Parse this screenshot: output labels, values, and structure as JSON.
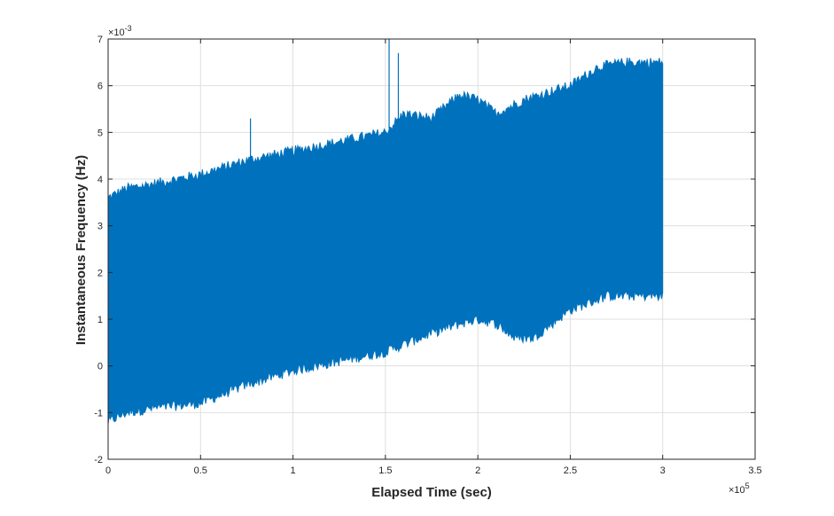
{
  "chart_data": {
    "type": "line",
    "title": "",
    "xlabel": "Elapsed Time (sec)",
    "ylabel": "Instantaneous Frequency (Hz)",
    "x_exponent_label": "×10",
    "x_exponent_power": "5",
    "y_exponent_label": "×10",
    "y_exponent_power": "-3",
    "xlim": [
      0,
      350000
    ],
    "ylim": [
      -0.002,
      0.007
    ],
    "x_ticks": [
      0,
      0.5,
      1,
      1.5,
      2,
      2.5,
      3,
      3.5
    ],
    "x_tick_labels": [
      "0",
      "0.5",
      "1",
      "1.5",
      "2",
      "2.5",
      "3",
      "3.5"
    ],
    "y_ticks": [
      -2,
      -1,
      0,
      1,
      2,
      3,
      4,
      5,
      6,
      7
    ],
    "y_tick_labels": [
      "-2",
      "-1",
      "0",
      "1",
      "2",
      "3",
      "4",
      "5",
      "6",
      "7"
    ],
    "grid": true,
    "series_color": "#0072BD",
    "upper_envelope": {
      "x": [
        0,
        10000,
        25000,
        50000,
        75000,
        100000,
        125000,
        150000,
        160000,
        175000,
        190000,
        200000,
        210000,
        225000,
        250000,
        265000,
        280000,
        300000
      ],
      "y": [
        0.0036,
        0.0038,
        0.0039,
        0.0041,
        0.0044,
        0.0046,
        0.0048,
        0.005,
        0.0054,
        0.0053,
        0.0058,
        0.0057,
        0.0054,
        0.0057,
        0.006,
        0.0064,
        0.0065,
        0.0065
      ]
    },
    "lower_envelope": {
      "x": [
        0,
        10000,
        25000,
        50000,
        75000,
        100000,
        125000,
        150000,
        175000,
        190000,
        200000,
        210000,
        220000,
        230000,
        250000,
        270000,
        300000
      ],
      "y": [
        -0.0012,
        -0.001,
        -0.0009,
        -0.0008,
        -0.0004,
        -0.0001,
        0.0001,
        0.0003,
        0.0007,
        0.0009,
        0.001,
        0.0009,
        0.0006,
        0.0006,
        0.0012,
        0.0015,
        0.0015
      ]
    },
    "spikes": [
      {
        "x": 77000,
        "y": 0.0053
      },
      {
        "x": 152000,
        "y": 0.007
      },
      {
        "x": 157000,
        "y": 0.0067
      },
      {
        "x": 67000,
        "y": -0.0001
      }
    ]
  }
}
